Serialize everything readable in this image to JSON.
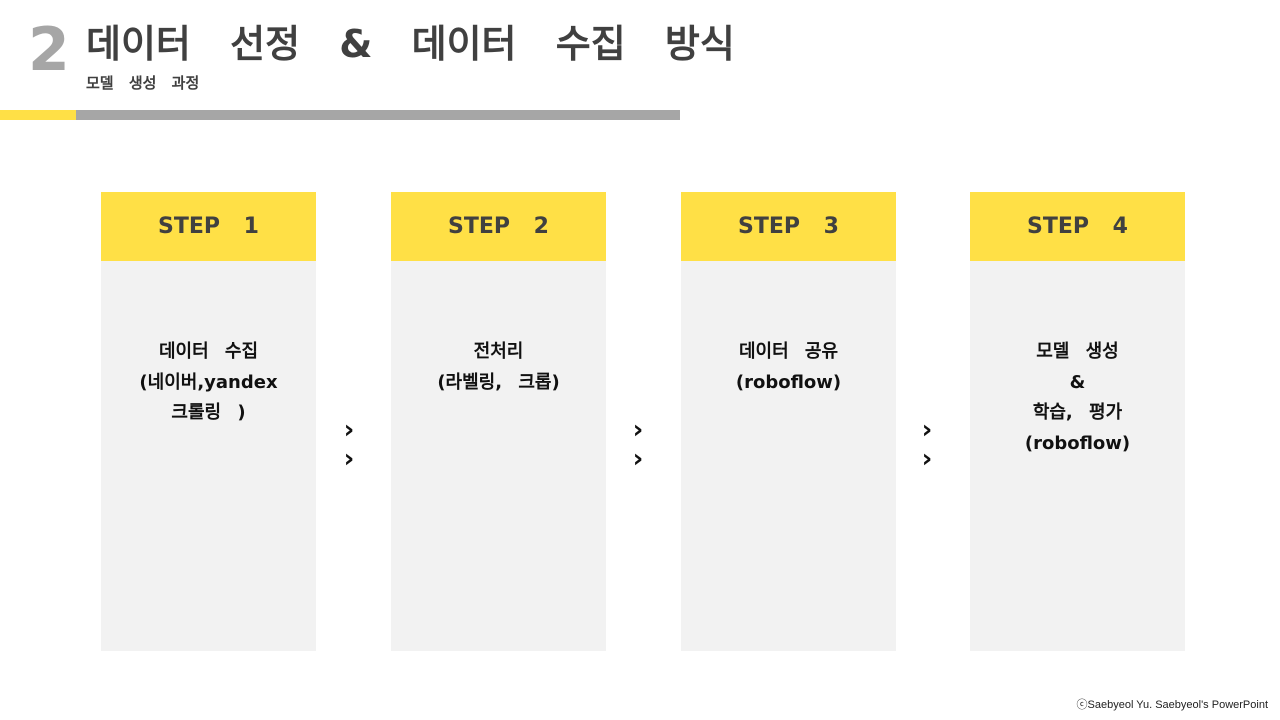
{
  "header": {
    "number": "2",
    "title": "데이터 선정 & 데이터 수집 방식",
    "subtitle": "모델 생성 과정"
  },
  "steps": [
    {
      "label": "STEP 1",
      "lines": [
        "데이터 수집",
        "(네이버,yandex",
        "크롤링 )"
      ]
    },
    {
      "label": "STEP 2",
      "lines": [
        "전처리",
        "(라벨링, 크롭)"
      ]
    },
    {
      "label": "STEP 3",
      "lines": [
        "데이터 공유",
        "(roboflow)"
      ]
    },
    {
      "label": "STEP 4",
      "lines": [
        "모델 생성",
        "&",
        "학습, 평가",
        "(roboflow)"
      ]
    }
  ],
  "arrows": {
    "glyph": "›"
  },
  "footer": {
    "credit": "ⓒSaebyeol Yu. Saebyeol's PowerPoint"
  },
  "colors": {
    "accent": "#ffe046",
    "gray_bar": "#a6a6a6",
    "card_bg": "#f2f2f2",
    "text_dark": "#404040"
  }
}
